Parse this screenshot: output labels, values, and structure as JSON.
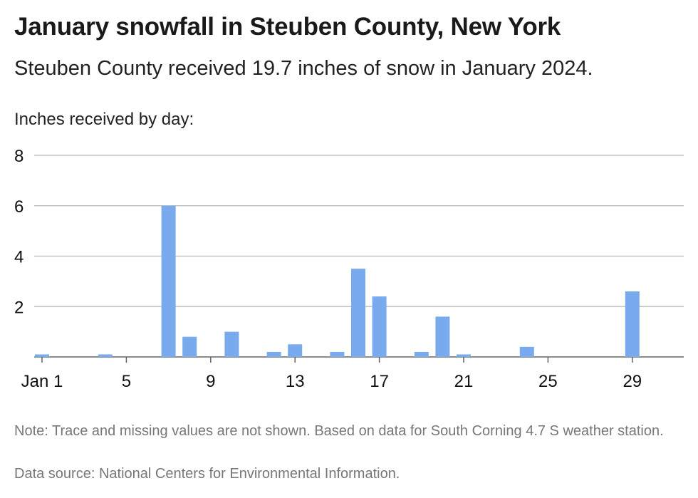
{
  "header": {
    "title": "January snowfall in Steuben County, New York",
    "subtitle": "Steuben County received 19.7 inches of snow in January 2024."
  },
  "footer": {
    "note": "Note: Trace and missing values are not shown. Based on data for South Corning 4.7 S weather station.",
    "source": "Data source: National Centers for Environmental Information."
  },
  "chart_data": {
    "type": "bar",
    "title": "January snowfall in Steuben County, New York",
    "subtitle": "Steuben County received 19.7 inches of snow in January 2024.",
    "ylabel": "Inches received by day:",
    "xlabel": "",
    "ylim": [
      0,
      8
    ],
    "y_ticks": [
      2,
      4,
      6,
      8
    ],
    "x_ticks": [
      {
        "day": 1,
        "label": "Jan 1"
      },
      {
        "day": 5,
        "label": "5"
      },
      {
        "day": 9,
        "label": "9"
      },
      {
        "day": 13,
        "label": "13"
      },
      {
        "day": 17,
        "label": "17"
      },
      {
        "day": 21,
        "label": "21"
      },
      {
        "day": 25,
        "label": "25"
      },
      {
        "day": 29,
        "label": "29"
      }
    ],
    "grid": true,
    "bar_color": "#7aaaee",
    "days": [
      1,
      4,
      7,
      8,
      10,
      12,
      13,
      15,
      16,
      17,
      19,
      20,
      21,
      24,
      29
    ],
    "values": [
      0.1,
      0.1,
      6.0,
      0.8,
      1.0,
      0.2,
      0.5,
      0.2,
      3.5,
      2.4,
      0.2,
      1.6,
      0.1,
      0.4,
      2.6
    ]
  }
}
